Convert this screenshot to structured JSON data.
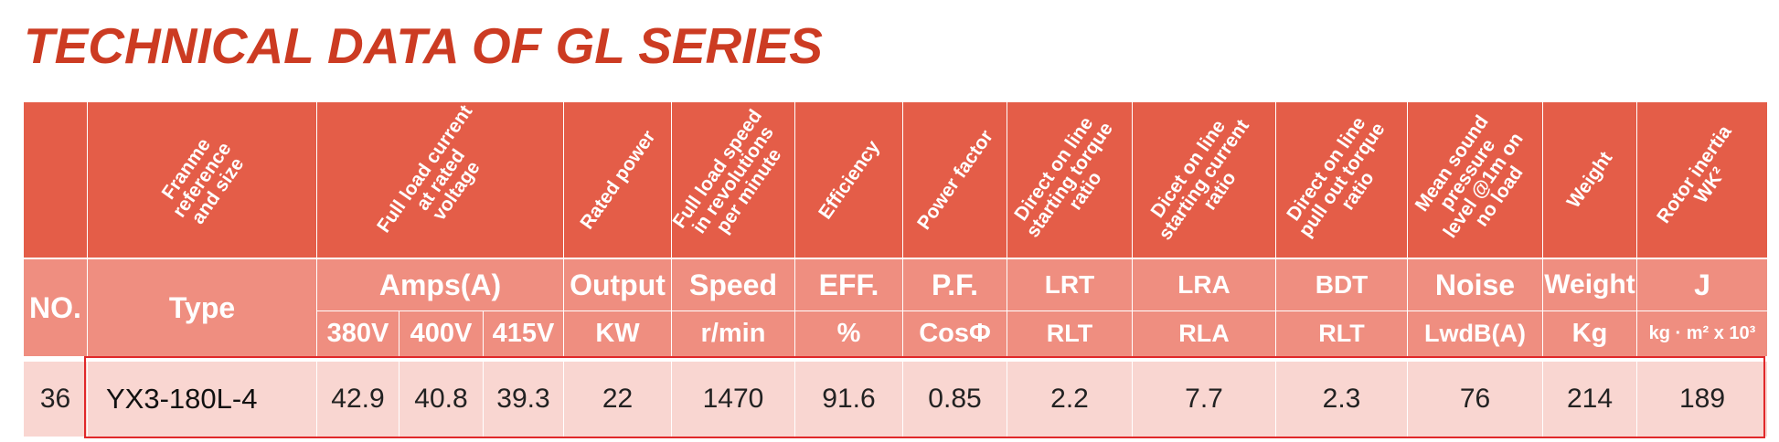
{
  "title": "TECHNICAL DATA OF GL SERIES",
  "header_rotated": {
    "type": "Franme\nreference\nand size",
    "amps": "Full load current\nat rated\nvoltage",
    "output": "Rated power",
    "speed": "Full load speed\nin revolutions\nper minute",
    "eff": "Efficiency",
    "pf": "Power factor",
    "lrt": "Direct on line\nstarting torque\nratio",
    "lra": "Dicet on line\nstarting current\nratio",
    "bdt": "Direct on line\npull out torque\nratio",
    "noise": "Mean sound\npressure\nlevel @1m on\nno load",
    "weight": "Weight",
    "j": "Rotor inertia\nWK²"
  },
  "header_labels": {
    "no": "NO.",
    "type": "Type",
    "amps": "Amps(A)",
    "output": "Output",
    "speed": "Speed",
    "eff": "EFF.",
    "pf": "P.F.",
    "lrt": "LRT",
    "lra": "LRA",
    "bdt": "BDT",
    "noise": "Noise",
    "weight": "Weight",
    "j": "J"
  },
  "header_units": {
    "v380": "380V",
    "v400": "400V",
    "v415": "415V",
    "output": "KW",
    "speed": "r/min",
    "eff": "%",
    "pf": "CosΦ",
    "lrt": "RLT",
    "lra": "RLA",
    "bdt": "RLT",
    "noise": "LwdB(A)",
    "weight": "Kg",
    "j": "kg · m² x 10³"
  },
  "row": {
    "no": "36",
    "type": "YX3-180L-4",
    "a380": "42.9",
    "a400": "40.8",
    "a415": "39.3",
    "output": "22",
    "speed": "1470",
    "eff": "91.6",
    "pf": "0.85",
    "lrt": "2.2",
    "lra": "7.7",
    "bdt": "2.3",
    "noise": "76",
    "weight": "214",
    "j": "189"
  },
  "colors": {
    "title": "#cc3b22",
    "header_dark": "#e45d48",
    "header_light": "#ef8e80",
    "row_bg": "#f9d6d1",
    "highlight": "#e0282a"
  }
}
